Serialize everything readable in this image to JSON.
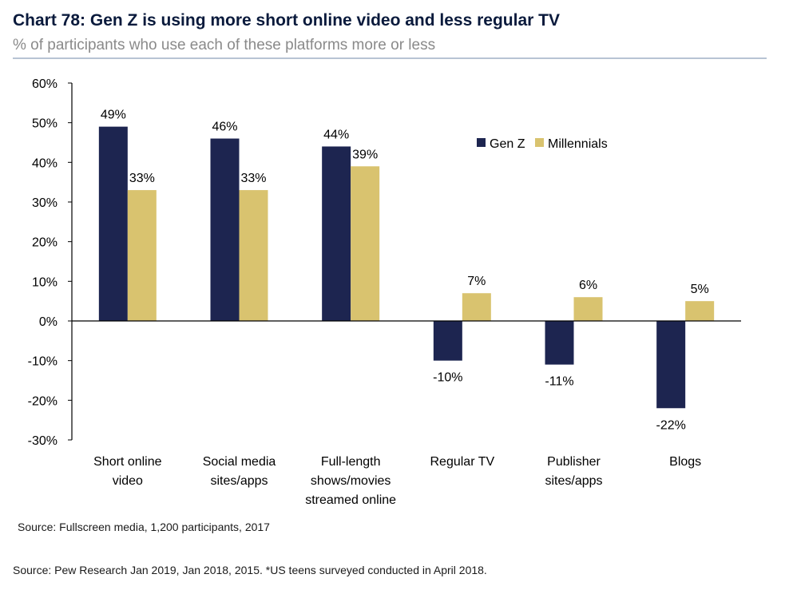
{
  "header": {
    "title": "Chart 78: Gen Z is using more short online video and less regular TV",
    "subtitle": "% of participants who use each of these platforms more or less"
  },
  "footer": {
    "source_primary": "Source: Fullscreen media, 1,200 participants, 2017",
    "source_secondary": "Source: Pew Research Jan 2019, Jan 2018, 2015. *US teens surveyed conducted in April 2018."
  },
  "colors": {
    "gen_z": "#1d2550",
    "millennials": "#d9c36f",
    "axis": "#000000"
  },
  "chart_data": {
    "type": "bar",
    "title": "Chart 78: Gen Z is using more short online video and less regular TV",
    "subtitle": "% of participants who use each of these platforms more or less",
    "categories": [
      [
        "Short online",
        "video"
      ],
      [
        "Social media",
        "sites/apps"
      ],
      [
        "Full-length",
        "shows/movies",
        "streamed online"
      ],
      [
        "Regular TV"
      ],
      [
        "Publisher",
        "sites/apps"
      ],
      [
        "Blogs"
      ]
    ],
    "series": [
      {
        "name": "Gen Z",
        "values": [
          49,
          46,
          44,
          -10,
          -11,
          -22
        ],
        "labels": [
          "49%",
          "46%",
          "44%",
          "-10%",
          "-11%",
          "-22%"
        ]
      },
      {
        "name": "Millennials",
        "values": [
          33,
          33,
          39,
          7,
          6,
          5
        ],
        "labels": [
          "33%",
          "33%",
          "39%",
          "7%",
          "6%",
          "5%"
        ]
      }
    ],
    "ylim": [
      -30,
      60
    ],
    "yticks": [
      60,
      50,
      40,
      30,
      20,
      10,
      0,
      -10,
      -20,
      -30
    ],
    "ytick_labels": [
      "60%",
      "50%",
      "40%",
      "30%",
      "20%",
      "10%",
      "0%",
      "-10%",
      "-20%",
      "-30%"
    ],
    "grid": false,
    "legend": {
      "position": "top-right"
    }
  }
}
